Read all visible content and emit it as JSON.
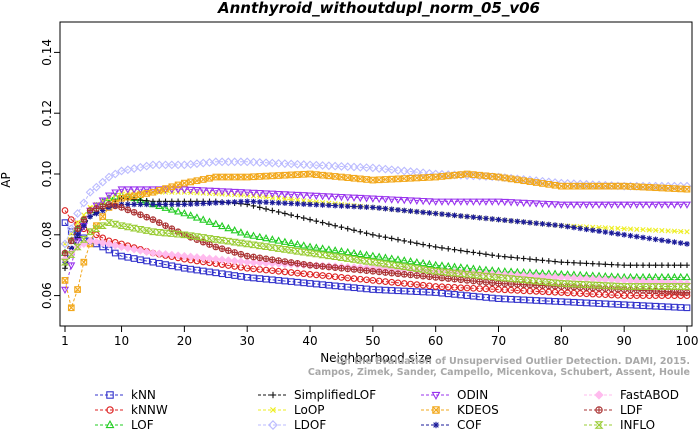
{
  "chart_data": {
    "type": "line",
    "title": "Annthyroid_withoutdupl_norm_05_v06",
    "xlabel": "Neighborhood size",
    "ylabel": "AP",
    "xlim": [
      1,
      100
    ],
    "ylim": [
      0.05,
      0.15
    ],
    "xticks": [
      1,
      10,
      20,
      30,
      40,
      50,
      60,
      70,
      80,
      90,
      100
    ],
    "yticks": [
      0.06,
      0.08,
      0.1,
      0.12,
      0.14
    ],
    "ytick_labels": [
      "0.06",
      "0.08",
      "0.10",
      "0.12",
      "0.14"
    ],
    "watermark_lines": [
      "Campos, Zimek, Sander, Campello, Micenkova, Schubert, Assent, Houle",
      "On the Evaluation of Unsupervised Outlier Detection. DAMI, 2015."
    ],
    "legend_position": "bottom",
    "series": [
      {
        "name": "kNN",
        "color": "#3333cc",
        "marker": "square",
        "points": [
          [
            1,
            0.084
          ],
          [
            2,
            0.081
          ],
          [
            4,
            0.079
          ],
          [
            6,
            0.077
          ],
          [
            8,
            0.075
          ],
          [
            10,
            0.073
          ],
          [
            15,
            0.071
          ],
          [
            20,
            0.069
          ],
          [
            30,
            0.066
          ],
          [
            40,
            0.064
          ],
          [
            50,
            0.062
          ],
          [
            60,
            0.061
          ],
          [
            70,
            0.059
          ],
          [
            80,
            0.058
          ],
          [
            90,
            0.057
          ],
          [
            100,
            0.056
          ]
        ]
      },
      {
        "name": "kNNW",
        "color": "#dd2222",
        "marker": "circle",
        "points": [
          [
            1,
            0.088
          ],
          [
            2,
            0.085
          ],
          [
            4,
            0.082
          ],
          [
            6,
            0.08
          ],
          [
            8,
            0.078
          ],
          [
            10,
            0.077
          ],
          [
            15,
            0.074
          ],
          [
            20,
            0.072
          ],
          [
            30,
            0.069
          ],
          [
            40,
            0.067
          ],
          [
            50,
            0.065
          ],
          [
            60,
            0.063
          ],
          [
            70,
            0.062
          ],
          [
            80,
            0.061
          ],
          [
            90,
            0.06
          ],
          [
            100,
            0.06
          ]
        ]
      },
      {
        "name": "LOF",
        "color": "#22cc22",
        "marker": "triangle-up",
        "points": [
          [
            1,
            0.074
          ],
          [
            3,
            0.082
          ],
          [
            5,
            0.088
          ],
          [
            8,
            0.092
          ],
          [
            10,
            0.093
          ],
          [
            12,
            0.092
          ],
          [
            15,
            0.09
          ],
          [
            20,
            0.087
          ],
          [
            30,
            0.08
          ],
          [
            40,
            0.076
          ],
          [
            50,
            0.073
          ],
          [
            60,
            0.07
          ],
          [
            70,
            0.068
          ],
          [
            80,
            0.067
          ],
          [
            90,
            0.066
          ],
          [
            100,
            0.066
          ]
        ]
      },
      {
        "name": "SimplifiedLOF",
        "color": "#111111",
        "marker": "plus",
        "points": [
          [
            1,
            0.069
          ],
          [
            3,
            0.079
          ],
          [
            5,
            0.086
          ],
          [
            8,
            0.09
          ],
          [
            10,
            0.092
          ],
          [
            15,
            0.091
          ],
          [
            20,
            0.091
          ],
          [
            25,
            0.091
          ],
          [
            30,
            0.09
          ],
          [
            40,
            0.085
          ],
          [
            50,
            0.08
          ],
          [
            60,
            0.076
          ],
          [
            70,
            0.073
          ],
          [
            80,
            0.071
          ],
          [
            90,
            0.07
          ],
          [
            100,
            0.07
          ]
        ]
      },
      {
        "name": "LoOP",
        "color": "#eeee22",
        "marker": "x",
        "points": [
          [
            1,
            0.077
          ],
          [
            3,
            0.084
          ],
          [
            5,
            0.089
          ],
          [
            8,
            0.092
          ],
          [
            10,
            0.094
          ],
          [
            15,
            0.094
          ],
          [
            20,
            0.094
          ],
          [
            30,
            0.093
          ],
          [
            40,
            0.091
          ],
          [
            50,
            0.089
          ],
          [
            60,
            0.087
          ],
          [
            70,
            0.085
          ],
          [
            80,
            0.083
          ],
          [
            90,
            0.082
          ],
          [
            100,
            0.081
          ]
        ]
      },
      {
        "name": "LDOF",
        "color": "#bbbbff",
        "marker": "diamond",
        "points": [
          [
            1,
            0.077
          ],
          [
            3,
            0.087
          ],
          [
            5,
            0.094
          ],
          [
            8,
            0.099
          ],
          [
            10,
            0.101
          ],
          [
            15,
            0.103
          ],
          [
            20,
            0.103
          ],
          [
            25,
            0.104
          ],
          [
            30,
            0.104
          ],
          [
            40,
            0.103
          ],
          [
            50,
            0.102
          ],
          [
            60,
            0.1
          ],
          [
            70,
            0.099
          ],
          [
            80,
            0.097
          ],
          [
            90,
            0.096
          ],
          [
            100,
            0.096
          ]
        ]
      },
      {
        "name": "ODIN",
        "color": "#9933ee",
        "marker": "triangle-down",
        "points": [
          [
            1,
            0.062
          ],
          [
            3,
            0.078
          ],
          [
            5,
            0.088
          ],
          [
            8,
            0.093
          ],
          [
            10,
            0.095
          ],
          [
            15,
            0.095
          ],
          [
            20,
            0.095
          ],
          [
            30,
            0.094
          ],
          [
            40,
            0.093
          ],
          [
            50,
            0.092
          ],
          [
            60,
            0.091
          ],
          [
            70,
            0.091
          ],
          [
            80,
            0.09
          ],
          [
            90,
            0.09
          ],
          [
            100,
            0.09
          ]
        ]
      },
      {
        "name": "KDEOS",
        "color": "#f2a81c",
        "marker": "square-x",
        "points": [
          [
            1,
            0.065
          ],
          [
            2,
            0.056
          ],
          [
            3,
            0.062
          ],
          [
            4,
            0.071
          ],
          [
            6,
            0.083
          ],
          [
            8,
            0.089
          ],
          [
            10,
            0.092
          ],
          [
            15,
            0.094
          ],
          [
            20,
            0.097
          ],
          [
            25,
            0.099
          ],
          [
            30,
            0.099
          ],
          [
            40,
            0.1
          ],
          [
            50,
            0.098
          ],
          [
            60,
            0.099
          ],
          [
            65,
            0.1
          ],
          [
            70,
            0.099
          ],
          [
            80,
            0.096
          ],
          [
            90,
            0.096
          ],
          [
            100,
            0.095
          ]
        ]
      },
      {
        "name": "COF",
        "color": "#1a1a99",
        "marker": "asterisk",
        "points": [
          [
            1,
            0.071
          ],
          [
            3,
            0.08
          ],
          [
            5,
            0.086
          ],
          [
            8,
            0.089
          ],
          [
            10,
            0.09
          ],
          [
            15,
            0.09
          ],
          [
            20,
            0.09
          ],
          [
            30,
            0.091
          ],
          [
            40,
            0.09
          ],
          [
            50,
            0.089
          ],
          [
            60,
            0.087
          ],
          [
            70,
            0.085
          ],
          [
            80,
            0.083
          ],
          [
            90,
            0.08
          ],
          [
            100,
            0.077
          ]
        ]
      },
      {
        "name": "FastABOD",
        "color": "#ffbbee",
        "marker": "diamond-filled",
        "points": [
          [
            1,
            0.072
          ],
          [
            3,
            0.076
          ],
          [
            5,
            0.078
          ],
          [
            8,
            0.077
          ],
          [
            10,
            0.076
          ],
          [
            15,
            0.074
          ],
          [
            20,
            0.073
          ],
          [
            30,
            0.071
          ],
          [
            40,
            0.07
          ],
          [
            50,
            0.069
          ],
          [
            60,
            0.068
          ],
          [
            70,
            0.067
          ],
          [
            80,
            0.066
          ],
          [
            90,
            0.065
          ],
          [
            100,
            0.064
          ]
        ]
      },
      {
        "name": "LDF",
        "color": "#aa3333",
        "marker": "circle-plus",
        "points": [
          [
            1,
            0.074
          ],
          [
            3,
            0.082
          ],
          [
            5,
            0.088
          ],
          [
            8,
            0.09
          ],
          [
            10,
            0.089
          ],
          [
            15,
            0.085
          ],
          [
            20,
            0.08
          ],
          [
            25,
            0.076
          ],
          [
            30,
            0.073
          ],
          [
            40,
            0.07
          ],
          [
            50,
            0.068
          ],
          [
            60,
            0.066
          ],
          [
            70,
            0.064
          ],
          [
            80,
            0.063
          ],
          [
            90,
            0.062
          ],
          [
            100,
            0.061
          ]
        ]
      },
      {
        "name": "INFLO",
        "color": "#99cc33",
        "marker": "hourglass",
        "points": [
          [
            1,
            0.071
          ],
          [
            3,
            0.076
          ],
          [
            5,
            0.081
          ],
          [
            8,
            0.084
          ],
          [
            10,
            0.083
          ],
          [
            15,
            0.081
          ],
          [
            20,
            0.08
          ],
          [
            30,
            0.077
          ],
          [
            40,
            0.074
          ],
          [
            50,
            0.071
          ],
          [
            60,
            0.068
          ],
          [
            70,
            0.066
          ],
          [
            80,
            0.064
          ],
          [
            90,
            0.063
          ],
          [
            100,
            0.063
          ]
        ]
      }
    ]
  }
}
